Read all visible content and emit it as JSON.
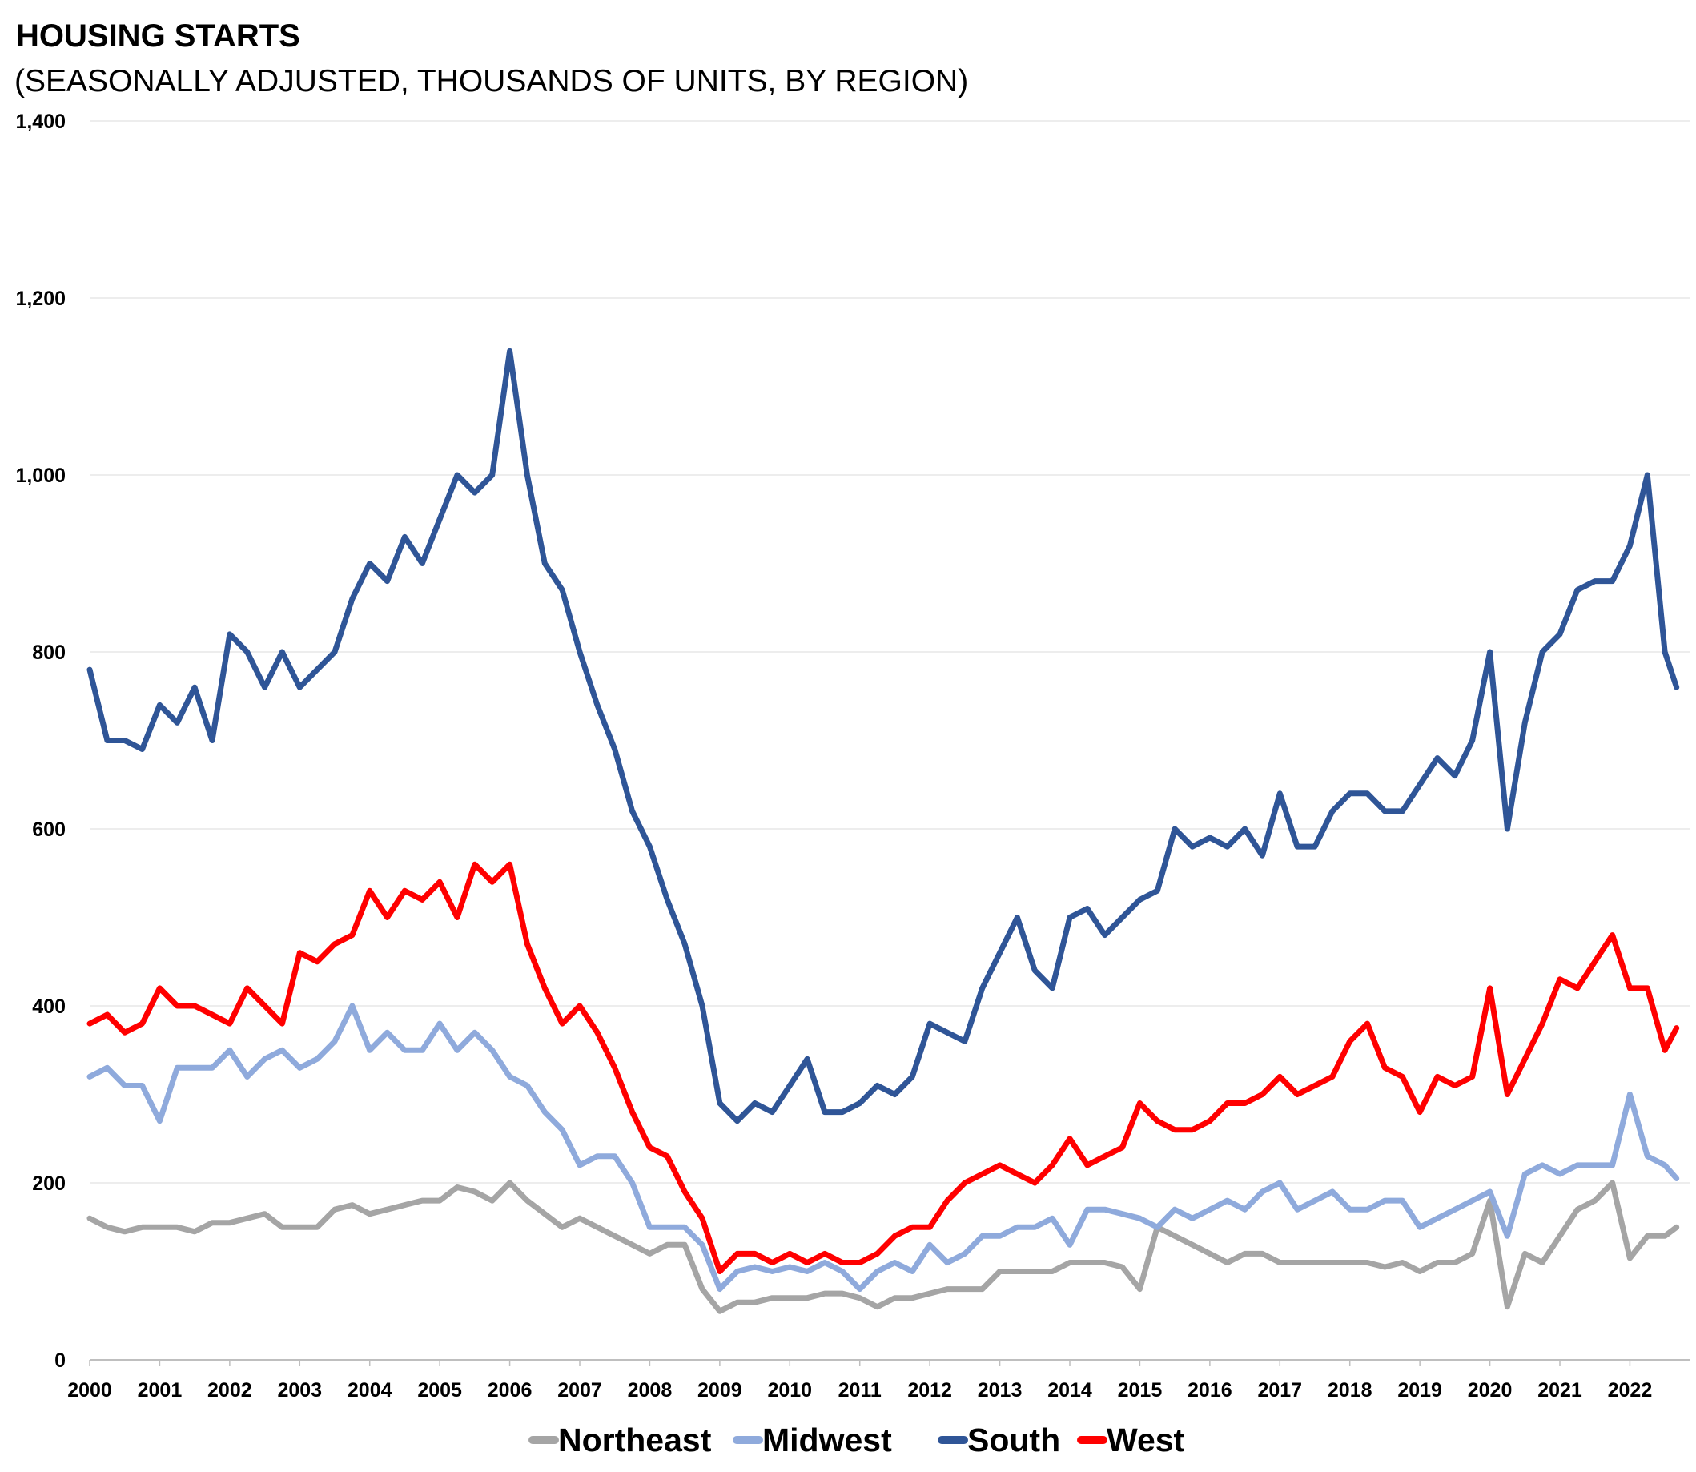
{
  "chart_data": {
    "type": "line",
    "title": "HOUSING STARTS",
    "subtitle": "(SEASONALLY ADJUSTED, THOUSANDS OF UNITS, BY REGION)",
    "xlabel": "",
    "ylabel": "",
    "ylim": [
      0,
      1400
    ],
    "xlim": [
      "2000-01",
      "2022-10"
    ],
    "grid": true,
    "legend": "bottom",
    "y_ticks": [
      "0",
      "200",
      "400",
      "600",
      "800",
      "1,000",
      "1,200",
      "1,400"
    ],
    "x_ticks": [
      "2000",
      "2001",
      "2002",
      "2003",
      "2004",
      "2005",
      "2006",
      "2007",
      "2008",
      "2009",
      "2010",
      "2011",
      "2012",
      "2013",
      "2014",
      "2015",
      "2016",
      "2017",
      "2018",
      "2019",
      "2020",
      "2021",
      "2022"
    ],
    "x": [
      "2000-01",
      "2000-04",
      "2000-07",
      "2000-10",
      "2001-01",
      "2001-04",
      "2001-07",
      "2001-10",
      "2002-01",
      "2002-04",
      "2002-07",
      "2002-10",
      "2003-01",
      "2003-04",
      "2003-07",
      "2003-10",
      "2004-01",
      "2004-04",
      "2004-07",
      "2004-10",
      "2005-01",
      "2005-04",
      "2005-07",
      "2005-10",
      "2006-01",
      "2006-04",
      "2006-07",
      "2006-10",
      "2007-01",
      "2007-04",
      "2007-07",
      "2007-10",
      "2008-01",
      "2008-04",
      "2008-07",
      "2008-10",
      "2009-01",
      "2009-04",
      "2009-07",
      "2009-10",
      "2010-01",
      "2010-04",
      "2010-07",
      "2010-10",
      "2011-01",
      "2011-04",
      "2011-07",
      "2011-10",
      "2012-01",
      "2012-04",
      "2012-07",
      "2012-10",
      "2013-01",
      "2013-04",
      "2013-07",
      "2013-10",
      "2014-01",
      "2014-04",
      "2014-07",
      "2014-10",
      "2015-01",
      "2015-04",
      "2015-07",
      "2015-10",
      "2016-01",
      "2016-04",
      "2016-07",
      "2016-10",
      "2017-01",
      "2017-04",
      "2017-07",
      "2017-10",
      "2018-01",
      "2018-04",
      "2018-07",
      "2018-10",
      "2019-01",
      "2019-04",
      "2019-07",
      "2019-10",
      "2020-01",
      "2020-04",
      "2020-07",
      "2020-10",
      "2021-01",
      "2021-04",
      "2021-07",
      "2021-10",
      "2022-01",
      "2022-04",
      "2022-07",
      "2022-09"
    ],
    "series": [
      {
        "name": "Northeast",
        "color": "#a5a5a5",
        "values": [
          160,
          150,
          145,
          150,
          150,
          150,
          145,
          155,
          155,
          160,
          165,
          150,
          150,
          150,
          170,
          175,
          165,
          170,
          175,
          180,
          180,
          195,
          190,
          180,
          200,
          180,
          165,
          150,
          160,
          150,
          140,
          130,
          120,
          130,
          130,
          80,
          55,
          65,
          65,
          70,
          70,
          70,
          75,
          75,
          70,
          60,
          70,
          70,
          75,
          80,
          80,
          80,
          100,
          100,
          100,
          100,
          110,
          110,
          110,
          105,
          80,
          150,
          140,
          130,
          120,
          110,
          120,
          120,
          110,
          110,
          110,
          110,
          110,
          110,
          105,
          110,
          100,
          110,
          110,
          120,
          180,
          60,
          120,
          110,
          140,
          170,
          180,
          200,
          115,
          140,
          140,
          150
        ]
      },
      {
        "name": "Midwest",
        "color": "#8faadc",
        "values": [
          320,
          330,
          310,
          310,
          270,
          330,
          330,
          330,
          350,
          320,
          340,
          350,
          330,
          340,
          360,
          400,
          350,
          370,
          350,
          350,
          380,
          350,
          370,
          350,
          320,
          310,
          280,
          260,
          220,
          230,
          230,
          200,
          150,
          150,
          150,
          130,
          80,
          100,
          105,
          100,
          105,
          100,
          110,
          100,
          80,
          100,
          110,
          100,
          130,
          110,
          120,
          140,
          140,
          150,
          150,
          160,
          130,
          170,
          170,
          165,
          160,
          150,
          170,
          160,
          170,
          180,
          170,
          190,
          200,
          170,
          180,
          190,
          170,
          170,
          180,
          180,
          150,
          160,
          170,
          180,
          190,
          140,
          210,
          220,
          210,
          220,
          220,
          220,
          300,
          230,
          220,
          205
        ]
      },
      {
        "name": "South",
        "color": "#2f5597",
        "values": [
          780,
          700,
          700,
          690,
          740,
          720,
          760,
          700,
          820,
          800,
          760,
          800,
          760,
          780,
          800,
          860,
          900,
          880,
          930,
          900,
          950,
          1000,
          980,
          1000,
          1140,
          1000,
          900,
          870,
          800,
          740,
          690,
          620,
          580,
          520,
          470,
          400,
          290,
          270,
          290,
          280,
          310,
          340,
          280,
          280,
          290,
          310,
          300,
          320,
          380,
          370,
          360,
          420,
          460,
          500,
          440,
          420,
          500,
          510,
          480,
          500,
          520,
          530,
          600,
          580,
          590,
          580,
          600,
          570,
          640,
          580,
          580,
          620,
          640,
          640,
          620,
          620,
          650,
          680,
          660,
          700,
          800,
          600,
          720,
          800,
          820,
          870,
          880,
          880,
          920,
          1000,
          800,
          760
        ]
      },
      {
        "name": "West",
        "color": "#ff0000",
        "values": [
          380,
          390,
          370,
          380,
          420,
          400,
          400,
          390,
          380,
          420,
          400,
          380,
          460,
          450,
          470,
          480,
          530,
          500,
          530,
          520,
          540,
          500,
          560,
          540,
          560,
          470,
          420,
          380,
          400,
          370,
          330,
          280,
          240,
          230,
          190,
          160,
          100,
          120,
          120,
          110,
          120,
          110,
          120,
          110,
          110,
          120,
          140,
          150,
          150,
          180,
          200,
          210,
          220,
          210,
          200,
          220,
          250,
          220,
          230,
          240,
          290,
          270,
          260,
          260,
          270,
          290,
          290,
          300,
          320,
          300,
          310,
          320,
          360,
          380,
          330,
          320,
          280,
          320,
          310,
          320,
          420,
          300,
          340,
          380,
          430,
          420,
          450,
          480,
          420,
          420,
          350,
          375
        ]
      }
    ]
  }
}
